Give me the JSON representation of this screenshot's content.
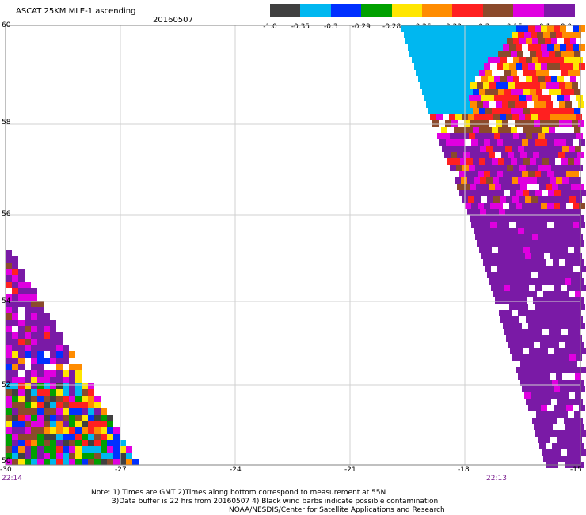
{
  "header": {
    "title": "ASCAT 25KM MLE-1 ascending",
    "date": "20160507"
  },
  "colorbar": {
    "segments": [
      {
        "color": "#404040",
        "label": "-1.0"
      },
      {
        "color": "#00b7f0",
        "label": "-0.35"
      },
      {
        "color": "#0030ff",
        "label": "-0.3"
      },
      {
        "color": "#00a000",
        "label": "-0.29"
      },
      {
        "color": "#ffe600",
        "label": "-0.28"
      },
      {
        "color": "#ff8c00",
        "label": "-0.26"
      },
      {
        "color": "#ff2020",
        "label": "-0.23"
      },
      {
        "color": "#8b4a2b",
        "label": "-0.2"
      },
      {
        "color": "#e000e0",
        "label": "-0.15"
      },
      {
        "color": "#7a1aa6",
        "label": "-0.1"
      }
    ],
    "end_label": "0.0"
  },
  "axes": {
    "x_ticks": [
      "-30",
      "-27",
      "-24",
      "-21",
      "-18",
      "-15"
    ],
    "y_ticks": [
      "60",
      "58",
      "56",
      "54",
      "52",
      "50"
    ]
  },
  "times": {
    "left": "22:14",
    "right": "22:13"
  },
  "notes": {
    "line1": "Note: 1) Times are GMT 2)Times along bottom correspond to measurement at 55N",
    "line2": "3)Data buffer is 22 hrs from 20160507 4) Black wind barbs indicate possible contamination",
    "line3": "NOAA/NESDIS/Center for Satellite Applications and Research"
  },
  "colors": {
    "purple": "#7a1aa6",
    "magenta": "#e000e0",
    "cyan": "#00b7f0",
    "grid": "#c8c8c8"
  }
}
